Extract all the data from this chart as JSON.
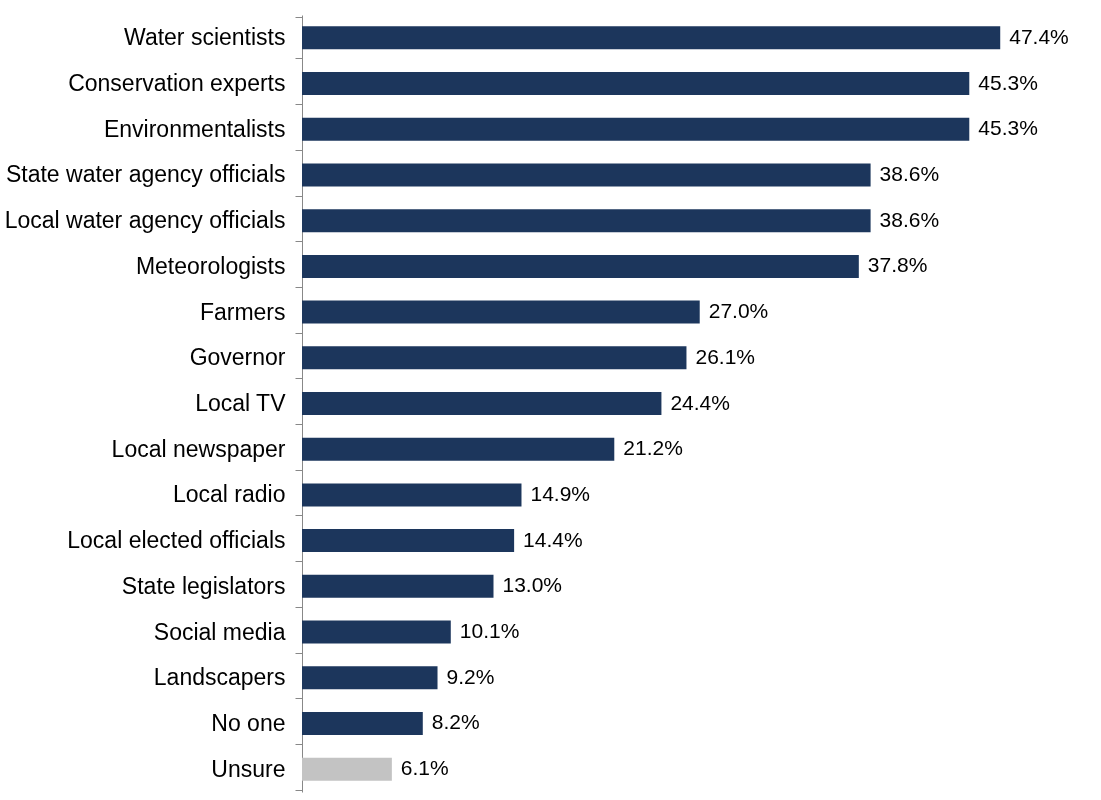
{
  "chart_data": {
    "type": "bar",
    "orientation": "horizontal",
    "categories": [
      "Water scientists",
      "Conservation experts",
      "Environmentalists",
      "State water agency officials",
      "Local water agency officials",
      "Meteorologists",
      "Farmers",
      "Governor",
      "Local TV",
      "Local newspaper",
      "Local radio",
      "Local elected officials",
      "State legislators",
      "Social media",
      "Landscapers",
      "No one",
      "Unsure"
    ],
    "values": [
      47.4,
      45.3,
      45.3,
      38.6,
      38.6,
      37.8,
      27.0,
      26.1,
      24.4,
      21.2,
      14.9,
      14.4,
      13.0,
      10.1,
      9.2,
      8.2,
      6.1
    ],
    "value_labels": [
      "47.4%",
      "45.3%",
      "45.3%",
      "38.6%",
      "38.6%",
      "37.8%",
      "27.0%",
      "26.1%",
      "24.4%",
      "21.2%",
      "14.9%",
      "14.4%",
      "13.0%",
      "10.1%",
      "9.2%",
      "8.2%",
      "6.1%"
    ],
    "colors": [
      "#1c365c",
      "#1c365c",
      "#1c365c",
      "#1c365c",
      "#1c365c",
      "#1c365c",
      "#1c365c",
      "#1c365c",
      "#1c365c",
      "#1c365c",
      "#1c365c",
      "#1c365c",
      "#1c365c",
      "#1c365c",
      "#1c365c",
      "#1c365c",
      "#c3c3c3"
    ],
    "grid": false
  }
}
